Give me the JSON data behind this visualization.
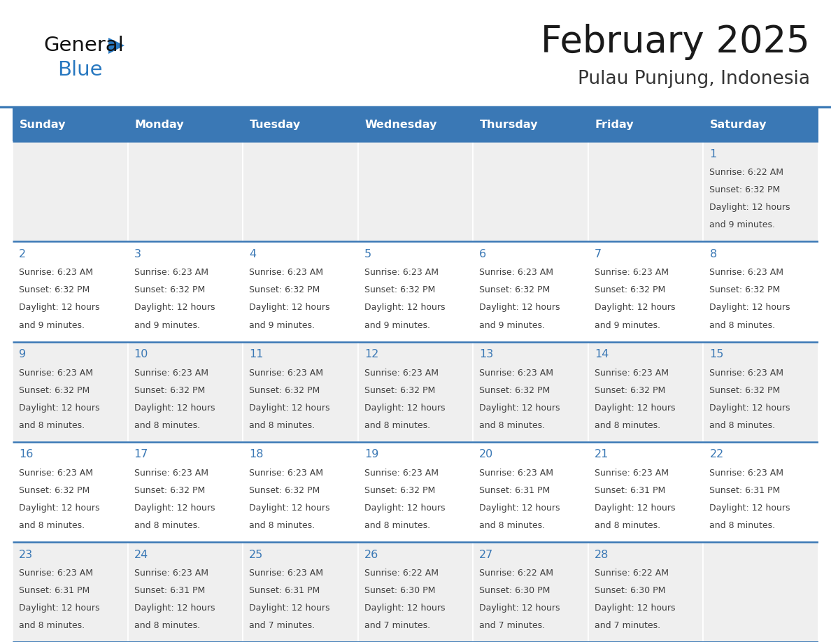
{
  "title": "February 2025",
  "subtitle": "Pulau Punjung, Indonesia",
  "days_of_week": [
    "Sunday",
    "Monday",
    "Tuesday",
    "Wednesday",
    "Thursday",
    "Friday",
    "Saturday"
  ],
  "header_bg": "#3A78B5",
  "header_text": "#FFFFFF",
  "cell_bg_odd": "#EFEFEF",
  "cell_bg_even": "#FFFFFF",
  "border_color": "#3A78B5",
  "day_number_color": "#3A78B5",
  "info_text_color": "#404040",
  "title_color": "#1A1A1A",
  "subtitle_color": "#333333",
  "logo_black": "#111111",
  "logo_blue": "#2878C0",
  "triangle_color": "#2878C0",
  "weeks": [
    [
      null,
      null,
      null,
      null,
      null,
      null,
      1
    ],
    [
      2,
      3,
      4,
      5,
      6,
      7,
      8
    ],
    [
      9,
      10,
      11,
      12,
      13,
      14,
      15
    ],
    [
      16,
      17,
      18,
      19,
      20,
      21,
      22
    ],
    [
      23,
      24,
      25,
      26,
      27,
      28,
      null
    ]
  ],
  "cell_data": {
    "1": {
      "sunrise": "6:22 AM",
      "sunset": "6:32 PM",
      "daylight_line1": "Daylight: 12 hours",
      "daylight_line2": "and 9 minutes."
    },
    "2": {
      "sunrise": "6:23 AM",
      "sunset": "6:32 PM",
      "daylight_line1": "Daylight: 12 hours",
      "daylight_line2": "and 9 minutes."
    },
    "3": {
      "sunrise": "6:23 AM",
      "sunset": "6:32 PM",
      "daylight_line1": "Daylight: 12 hours",
      "daylight_line2": "and 9 minutes."
    },
    "4": {
      "sunrise": "6:23 AM",
      "sunset": "6:32 PM",
      "daylight_line1": "Daylight: 12 hours",
      "daylight_line2": "and 9 minutes."
    },
    "5": {
      "sunrise": "6:23 AM",
      "sunset": "6:32 PM",
      "daylight_line1": "Daylight: 12 hours",
      "daylight_line2": "and 9 minutes."
    },
    "6": {
      "sunrise": "6:23 AM",
      "sunset": "6:32 PM",
      "daylight_line1": "Daylight: 12 hours",
      "daylight_line2": "and 9 minutes."
    },
    "7": {
      "sunrise": "6:23 AM",
      "sunset": "6:32 PM",
      "daylight_line1": "Daylight: 12 hours",
      "daylight_line2": "and 9 minutes."
    },
    "8": {
      "sunrise": "6:23 AM",
      "sunset": "6:32 PM",
      "daylight_line1": "Daylight: 12 hours",
      "daylight_line2": "and 8 minutes."
    },
    "9": {
      "sunrise": "6:23 AM",
      "sunset": "6:32 PM",
      "daylight_line1": "Daylight: 12 hours",
      "daylight_line2": "and 8 minutes."
    },
    "10": {
      "sunrise": "6:23 AM",
      "sunset": "6:32 PM",
      "daylight_line1": "Daylight: 12 hours",
      "daylight_line2": "and 8 minutes."
    },
    "11": {
      "sunrise": "6:23 AM",
      "sunset": "6:32 PM",
      "daylight_line1": "Daylight: 12 hours",
      "daylight_line2": "and 8 minutes."
    },
    "12": {
      "sunrise": "6:23 AM",
      "sunset": "6:32 PM",
      "daylight_line1": "Daylight: 12 hours",
      "daylight_line2": "and 8 minutes."
    },
    "13": {
      "sunrise": "6:23 AM",
      "sunset": "6:32 PM",
      "daylight_line1": "Daylight: 12 hours",
      "daylight_line2": "and 8 minutes."
    },
    "14": {
      "sunrise": "6:23 AM",
      "sunset": "6:32 PM",
      "daylight_line1": "Daylight: 12 hours",
      "daylight_line2": "and 8 minutes."
    },
    "15": {
      "sunrise": "6:23 AM",
      "sunset": "6:32 PM",
      "daylight_line1": "Daylight: 12 hours",
      "daylight_line2": "and 8 minutes."
    },
    "16": {
      "sunrise": "6:23 AM",
      "sunset": "6:32 PM",
      "daylight_line1": "Daylight: 12 hours",
      "daylight_line2": "and 8 minutes."
    },
    "17": {
      "sunrise": "6:23 AM",
      "sunset": "6:32 PM",
      "daylight_line1": "Daylight: 12 hours",
      "daylight_line2": "and 8 minutes."
    },
    "18": {
      "sunrise": "6:23 AM",
      "sunset": "6:32 PM",
      "daylight_line1": "Daylight: 12 hours",
      "daylight_line2": "and 8 minutes."
    },
    "19": {
      "sunrise": "6:23 AM",
      "sunset": "6:32 PM",
      "daylight_line1": "Daylight: 12 hours",
      "daylight_line2": "and 8 minutes."
    },
    "20": {
      "sunrise": "6:23 AM",
      "sunset": "6:31 PM",
      "daylight_line1": "Daylight: 12 hours",
      "daylight_line2": "and 8 minutes."
    },
    "21": {
      "sunrise": "6:23 AM",
      "sunset": "6:31 PM",
      "daylight_line1": "Daylight: 12 hours",
      "daylight_line2": "and 8 minutes."
    },
    "22": {
      "sunrise": "6:23 AM",
      "sunset": "6:31 PM",
      "daylight_line1": "Daylight: 12 hours",
      "daylight_line2": "and 8 minutes."
    },
    "23": {
      "sunrise": "6:23 AM",
      "sunset": "6:31 PM",
      "daylight_line1": "Daylight: 12 hours",
      "daylight_line2": "and 8 minutes."
    },
    "24": {
      "sunrise": "6:23 AM",
      "sunset": "6:31 PM",
      "daylight_line1": "Daylight: 12 hours",
      "daylight_line2": "and 8 minutes."
    },
    "25": {
      "sunrise": "6:23 AM",
      "sunset": "6:31 PM",
      "daylight_line1": "Daylight: 12 hours",
      "daylight_line2": "and 7 minutes."
    },
    "26": {
      "sunrise": "6:22 AM",
      "sunset": "6:30 PM",
      "daylight_line1": "Daylight: 12 hours",
      "daylight_line2": "and 7 minutes."
    },
    "27": {
      "sunrise": "6:22 AM",
      "sunset": "6:30 PM",
      "daylight_line1": "Daylight: 12 hours",
      "daylight_line2": "and 7 minutes."
    },
    "28": {
      "sunrise": "6:22 AM",
      "sunset": "6:30 PM",
      "daylight_line1": "Daylight: 12 hours",
      "daylight_line2": "and 7 minutes."
    }
  },
  "fig_width": 11.88,
  "fig_height": 9.18,
  "dpi": 100
}
